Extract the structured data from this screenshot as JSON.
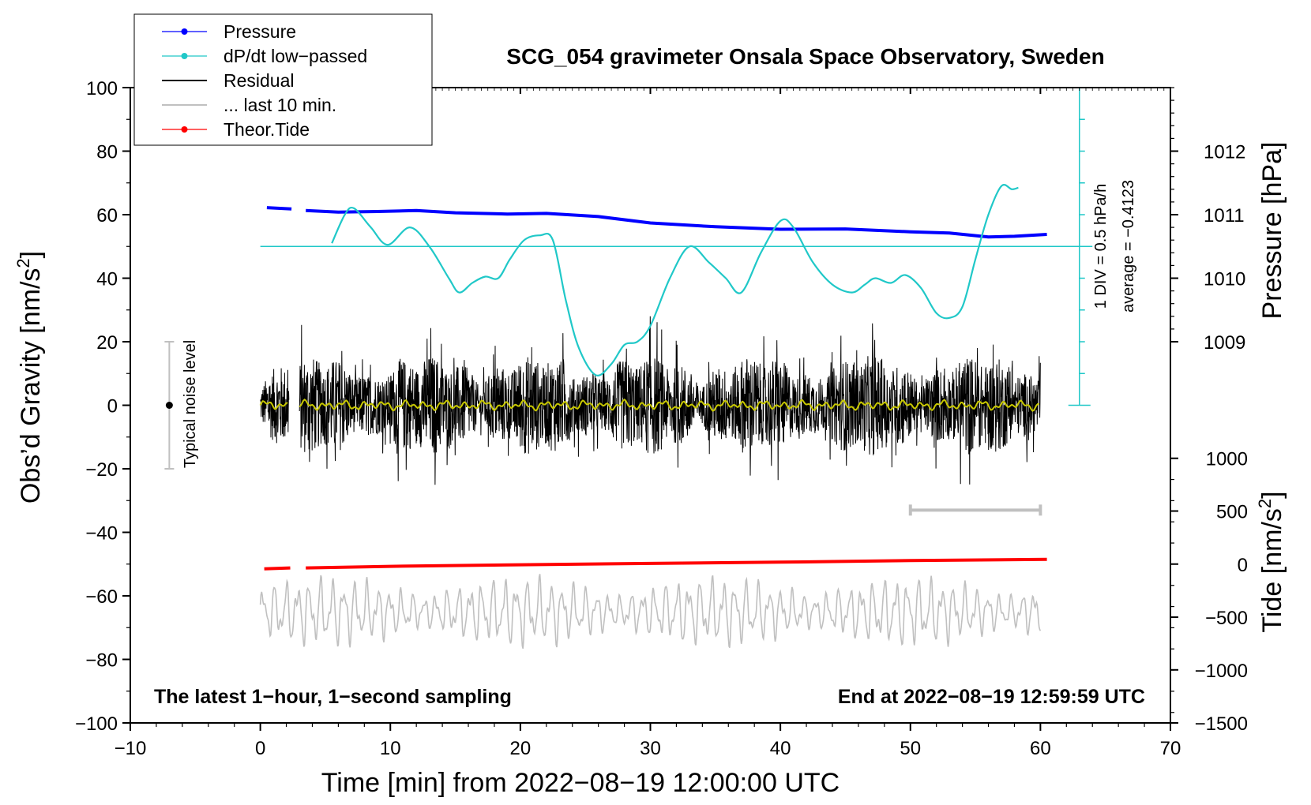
{
  "chart_data": {
    "type": "line",
    "title": "SCG_054 gravimeter Onsala Space Observatory, Sweden",
    "xlabel": "Time [min] from 2022−08−19 12:00:00 UTC",
    "ylabel_left": "Obs’d Gravity [nm/s",
    "ylabel_left_sup": "2",
    "ylabel_left_end": "]",
    "ylabel_right_top": "Pressure [hPa]",
    "ylabel_right_bottom": "Tide [nm/s",
    "ylabel_right_bottom_sup": "2",
    "ylabel_right_bottom_end": "]",
    "xlim": [
      -10,
      70
    ],
    "ylim": [
      -100,
      100
    ],
    "xticks": [
      -10,
      0,
      10,
      20,
      30,
      40,
      50,
      60,
      70
    ],
    "xtick_labels": [
      "−10",
      "0",
      "10",
      "20",
      "30",
      "40",
      "50",
      "60",
      "70"
    ],
    "yticks": [
      100,
      80,
      60,
      40,
      20,
      0,
      -20,
      -40,
      -60,
      -80,
      -100
    ],
    "ytick_labels": [
      "100",
      "80",
      "60",
      "40",
      "20",
      "0",
      "−20",
      "−40",
      "−60",
      "−80",
      "−100"
    ],
    "pressure_ticks": [
      1012,
      1011,
      1010,
      1009
    ],
    "pressure_tick_labels": [
      "1012",
      "1011",
      "1010",
      "1009"
    ],
    "pressure_tick_gravity": [
      80,
      60,
      40,
      20
    ],
    "tide_ticks": [
      1000,
      500,
      0,
      -500,
      -1000,
      -1500
    ],
    "tide_tick_labels": [
      "1000",
      "500",
      "0",
      "−500",
      "−1000",
      "−1500"
    ],
    "tide_tick_gravity": [
      -16.7,
      -33.3,
      -50,
      -66.7,
      -83.3,
      -100
    ],
    "legend": [
      {
        "label": "Pressure",
        "color": "#0000ff",
        "marker": true
      },
      {
        "label": "dP/dt low−passed",
        "color": "#20c8c8",
        "marker": true
      },
      {
        "label": "Residual",
        "color": "#000000",
        "marker": false
      },
      {
        "label": "... last 10 min.",
        "color": "#c0c0c0",
        "marker": false
      },
      {
        "label": "Theor.Tide",
        "color": "#ff0000",
        "marker": true
      }
    ],
    "annotations": {
      "bottom_left": "The latest 1−hour, 1−second sampling",
      "bottom_right": "End at 2022−08−19 12:59:59 UTC",
      "noise": "Typical noise level",
      "div": "1 DIV = 0.5 hPa/h",
      "average": "average = −0.4123"
    },
    "noise_bar": {
      "x": -7,
      "y_low": -20,
      "y_high": 20
    },
    "last10_bar": {
      "x_start": 50,
      "x_end": 60,
      "y": -33
    },
    "dpdt_scale": {
      "x": 63,
      "y_bottom": 0,
      "y_top": 100,
      "y_zero_line": 50,
      "x_from": 0,
      "x_to": 64
    },
    "series": [
      {
        "name": "Pressure",
        "color": "#0000ff",
        "x": [
          0.5,
          2.4,
          3.5,
          6,
          9,
          12,
          15,
          19,
          22,
          26,
          30,
          35,
          40,
          45,
          50,
          53,
          56,
          58,
          60.5
        ],
        "y": [
          62.2,
          61.8,
          61.3,
          60.8,
          61.0,
          61.3,
          60.6,
          60.2,
          60.4,
          59.4,
          57.4,
          56.2,
          55.4,
          55.5,
          54.6,
          54.2,
          53.0,
          53.2,
          53.8
        ]
      },
      {
        "name": "dP/dt low-passed",
        "color": "#20c8c8",
        "x": [
          5.5,
          6.5,
          7.2,
          8.5,
          9.8,
          11.5,
          13,
          14.5,
          15.3,
          16.3,
          17.3,
          18.3,
          19.2,
          20.3,
          21.5,
          22.5,
          23.5,
          24.5,
          25.8,
          27,
          28,
          29,
          30,
          31.5,
          33,
          34.5,
          35.8,
          37,
          38.5,
          40,
          41,
          42.5,
          44,
          45.5,
          46.5,
          47.3,
          48.5,
          49.6,
          50.8,
          52,
          53,
          54,
          55,
          56,
          57,
          57.8,
          58.3
        ],
        "y": [
          51,
          60,
          62,
          56,
          50.5,
          56,
          50,
          40,
          35.5,
          38.5,
          40.5,
          40,
          46,
          52,
          53.5,
          52,
          33,
          18,
          9.5,
          13,
          19,
          20,
          25,
          40,
          50,
          45,
          40,
          35.5,
          48,
          58,
          56,
          45,
          38,
          35.5,
          38,
          40,
          38.5,
          41,
          37,
          29,
          27.5,
          31,
          46,
          60,
          69,
          68,
          68.5
        ]
      },
      {
        "name": "Theor.Tide",
        "color": "#ff0000",
        "x": [
          0.3,
          2.3,
          3.5,
          10,
          20,
          30,
          40,
          50,
          60.5
        ],
        "y": [
          -51.5,
          -51.2,
          -51.2,
          -50.7,
          -50.2,
          -49.8,
          -49.4,
          -48.9,
          -48.5
        ]
      },
      {
        "name": "Residual",
        "color": "#000000",
        "x": [
          0,
          60
        ],
        "y": [
          0,
          0
        ],
        "envelope": 10
      },
      {
        "name": "... last 10 min.",
        "color": "#c0c0c0",
        "x": [
          0,
          60
        ],
        "y": [
          -65,
          -65
        ],
        "envelope": 10
      }
    ]
  }
}
